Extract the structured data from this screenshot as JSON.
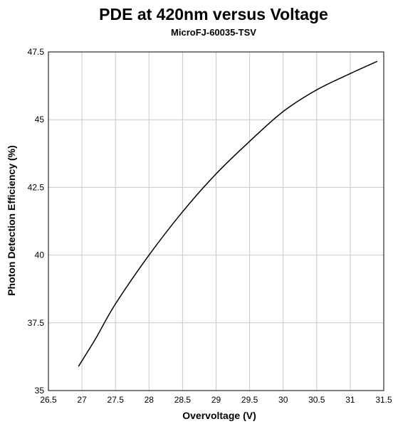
{
  "chart_data": {
    "type": "line",
    "title": "PDE at 420nm versus Voltage",
    "subtitle": "MicroFJ-60035-TSV",
    "xlabel": "Overvoltage (V)",
    "ylabel": "Photon Detection Efficiency (%)",
    "xlim": [
      26.5,
      31.5
    ],
    "ylim": [
      35,
      47.5
    ],
    "xticks": [
      "26.5",
      "27",
      "27.5",
      "28",
      "28.5",
      "29",
      "29.5",
      "30",
      "30.5",
      "31",
      "31.5"
    ],
    "yticks": [
      "35",
      "37.5",
      "40",
      "42.5",
      "45",
      "47.5"
    ],
    "grid": true,
    "series": [
      {
        "x": [
          26.95,
          27.2,
          27.5,
          28.0,
          28.5,
          29.0,
          29.5,
          30.0,
          30.5,
          31.0,
          31.4
        ],
        "y": [
          35.9,
          36.9,
          38.2,
          40.0,
          41.6,
          43.0,
          44.2,
          45.3,
          46.1,
          46.7,
          47.15
        ]
      }
    ]
  }
}
